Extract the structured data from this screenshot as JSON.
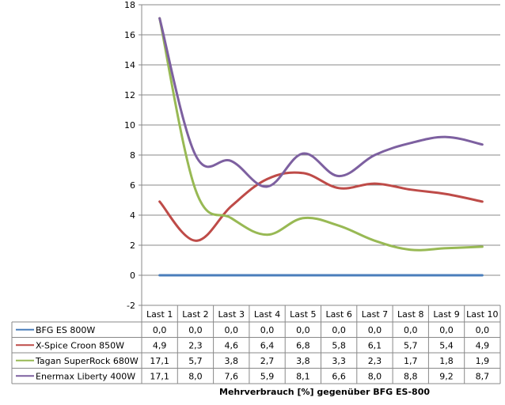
{
  "chart_data": {
    "type": "line",
    "title": "",
    "xlabel": "Mehrverbrauch [%] gegenüber BFG ES-800",
    "ylabel": "",
    "ylim": [
      -2,
      18
    ],
    "yticks": [
      -2,
      0,
      2,
      4,
      6,
      8,
      10,
      12,
      14,
      16,
      18
    ],
    "grid": true,
    "legend": "data-table-left",
    "categories": [
      "Last 1",
      "Last 2",
      "Last 3",
      "Last 4",
      "Last 5",
      "Last 6",
      "Last 7",
      "Last 8",
      "Last 9",
      "Last 10"
    ],
    "series": [
      {
        "name": "BFG ES 800W",
        "color": "#4a7ebb",
        "values": [
          0.0,
          0.0,
          0.0,
          0.0,
          0.0,
          0.0,
          0.0,
          0.0,
          0.0,
          0.0
        ],
        "labels": [
          "0,0",
          "0,0",
          "0,0",
          "0,0",
          "0,0",
          "0,0",
          "0,0",
          "0,0",
          "0,0",
          "0,0"
        ]
      },
      {
        "name": "X-Spice Croon 850W",
        "color": "#be4b48",
        "values": [
          4.9,
          2.3,
          4.6,
          6.4,
          6.8,
          5.8,
          6.1,
          5.7,
          5.4,
          4.9
        ],
        "labels": [
          "4,9",
          "2,3",
          "4,6",
          "6,4",
          "6,8",
          "5,8",
          "6,1",
          "5,7",
          "5,4",
          "4,9"
        ]
      },
      {
        "name": "Tagan SuperRock 680W",
        "color": "#98b954",
        "values": [
          17.1,
          5.7,
          3.8,
          2.7,
          3.8,
          3.3,
          2.3,
          1.7,
          1.8,
          1.9
        ],
        "labels": [
          "17,1",
          "5,7",
          "3,8",
          "2,7",
          "3,8",
          "3,3",
          "2,3",
          "1,7",
          "1,8",
          "1,9"
        ]
      },
      {
        "name": "Enermax Liberty 400W",
        "color": "#7d60a0",
        "values": [
          17.1,
          8.0,
          7.6,
          5.9,
          8.1,
          6.6,
          8.0,
          8.8,
          9.2,
          8.7
        ],
        "labels": [
          "17,1",
          "8,0",
          "7,6",
          "5,9",
          "8,1",
          "6,6",
          "8,0",
          "8,8",
          "9,2",
          "8,7"
        ]
      }
    ]
  }
}
